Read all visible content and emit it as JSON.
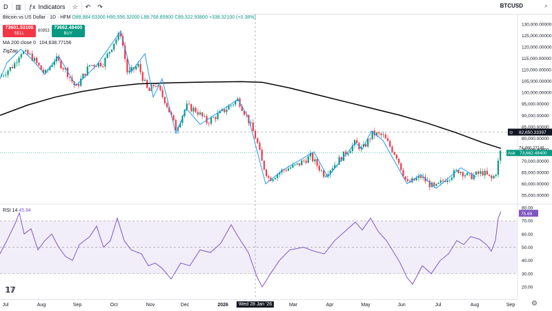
{
  "toolbar": {
    "interval": "D",
    "indicators_label": "Indicators",
    "symbol": "BTCUSD"
  },
  "legend": {
    "title": "Bitcoin vs US Dollar · 1D · HFM",
    "open": "O88,984.63300",
    "high": "H90,556.32000",
    "low": "L88,768.85900",
    "close": "C89,322.93800",
    "change": "+338.32100 (+0.38%)"
  },
  "trade": {
    "sell_price": "73601.53100",
    "sell_label": "SELL",
    "spread": "60953",
    "buy_price": "73662.48400",
    "buy_label": "BUY"
  },
  "indicators": {
    "ma_label": "MA 200 close 0",
    "ma_value": "104,638.77156",
    "zigzag_label": "ZigZag"
  },
  "rsi": {
    "label": "RSI 14",
    "value": "45.84"
  },
  "price_axis": {
    "labels": [
      "130,000.00000",
      "125,000.00000",
      "120,000.00000",
      "115,000.00000",
      "110,000.00000",
      "105,000.00000",
      "100,000.00000",
      "95,000.00000",
      "90,000.00000",
      "85,000.00000",
      "80,000.00000",
      "75,000.00000",
      "70,000.00000",
      "65,000.00000",
      "60,000.00000",
      "55,000.00000"
    ],
    "crosshair_price": "82,650.33397",
    "ask_label": "Ask",
    "ask_price": "73,662.48400",
    "ma_marker": "74,460.27145"
  },
  "rsi_axis": {
    "labels": [
      "80.00",
      "70.00",
      "60.00",
      "50.00",
      "40.00",
      "30.00",
      "20.00"
    ],
    "current": "75.69"
  },
  "time_axis": {
    "labels": [
      "Jul",
      "Aug",
      "Sep",
      "Oct",
      "Nov",
      "Dec",
      "2026",
      "Mar",
      "Apr",
      "May",
      "Jun",
      "Jul",
      "Aug",
      "Sep"
    ],
    "crosshair_date": "Wed 28 Jan '26"
  },
  "colors": {
    "up": "#089981",
    "down": "#f23645",
    "ma": "#000000",
    "zigzag": "#2196f3",
    "rsi": "#7e57c2",
    "rsi_band": "#ede7f6"
  },
  "chart_data": {
    "type": "line",
    "title": "Bitcoin vs US Dollar · 1D · HFM",
    "x": [
      "Jul",
      "Aug",
      "Sep",
      "Oct",
      "Nov",
      "Dec",
      "2026",
      "Mar",
      "Apr",
      "May",
      "Jun",
      "Jul",
      "Aug"
    ],
    "ylim": [
      52000,
      135000
    ],
    "series": [
      {
        "name": "MA 200 close 0",
        "values": [
          90000,
          96000,
          100000,
          103000,
          104500,
          104800,
          104500,
          103500,
          99000,
          93000,
          86000,
          80000,
          76000
        ]
      },
      {
        "name": "ZigZag",
        "values": [
          110000,
          108000,
          112000,
          125000,
          104000,
          84000,
          97000,
          60000,
          76000,
          83000,
          60000,
          67000,
          64000
        ]
      }
    ],
    "rsi": {
      "name": "RSI 14",
      "ylim": [
        15,
        82
      ],
      "bands": [
        30,
        50,
        70
      ]
    }
  }
}
